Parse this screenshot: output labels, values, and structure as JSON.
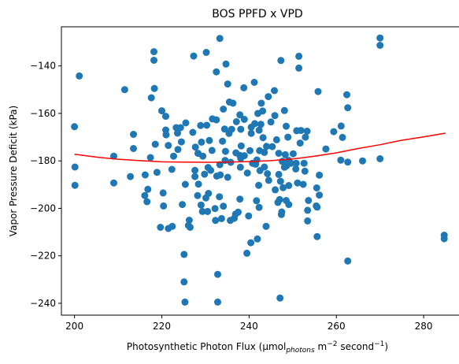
{
  "chart_data": {
    "type": "scatter",
    "title": "BOS PPFD x VPD",
    "xlabel": {
      "prefix": "Photosynthetic Photon Flux (µmol",
      "subscript": "photons",
      "middle": " m",
      "sup1": "−2",
      "suffix": " second",
      "sup2": "−1",
      "end": ")"
    },
    "ylabel": "Vapor Pressure Deficit (kPa)",
    "xlim": [
      197,
      289
    ],
    "ylim": [
      -245,
      -123.5
    ],
    "xticks": [
      200,
      220,
      240,
      260,
      280
    ],
    "yticks": [
      -240,
      -220,
      -200,
      -180,
      -160,
      -140
    ],
    "xtick_labels": [
      "200",
      "220",
      "240",
      "260",
      "280"
    ],
    "ytick_labels": [
      "−240",
      "−220",
      "−200",
      "−180",
      "−160",
      "−140"
    ],
    "grid": false,
    "colors": {
      "points": "#1f77b4",
      "trend": "#ff0000"
    },
    "points": [
      [
        200.0,
        -165.6
      ],
      [
        200.1,
        -182.6
      ],
      [
        200.1,
        -190.3
      ],
      [
        201.1,
        -144.2
      ],
      [
        209.0,
        -178.0
      ],
      [
        209.0,
        -189.3
      ],
      [
        211.5,
        -150.0
      ],
      [
        212.8,
        -186.6
      ],
      [
        213.5,
        -168.8
      ],
      [
        213.5,
        -174.8
      ],
      [
        216.1,
        -194.6
      ],
      [
        216.2,
        -185.9
      ],
      [
        216.6,
        -197.2
      ],
      [
        216.8,
        -192.0
      ],
      [
        217.4,
        -178.6
      ],
      [
        217.6,
        -153.4
      ],
      [
        218.2,
        -134.0
      ],
      [
        218.2,
        -137.6
      ],
      [
        218.3,
        -149.5
      ],
      [
        218.5,
        -173.0
      ],
      [
        218.9,
        -184.8
      ],
      [
        219.7,
        -208.0
      ],
      [
        220.0,
        -158.9
      ],
      [
        220.3,
        -193.5
      ],
      [
        220.4,
        -199.0
      ],
      [
        220.9,
        -161.2
      ],
      [
        220.9,
        -167.0
      ],
      [
        221.0,
        -169.0
      ],
      [
        221.5,
        -208.5
      ],
      [
        221.5,
        -173.5
      ],
      [
        222.3,
        -183.6
      ],
      [
        222.4,
        -207.6
      ],
      [
        222.7,
        -178.0
      ],
      [
        223.3,
        -166.0
      ],
      [
        223.6,
        -168.3
      ],
      [
        223.7,
        -175.2
      ],
      [
        224.3,
        -166.0
      ],
      [
        224.5,
        -172.0
      ],
      [
        224.7,
        -198.4
      ],
      [
        225.1,
        -219.4
      ],
      [
        225.1,
        -231.0
      ],
      [
        225.3,
        -239.5
      ],
      [
        225.4,
        -189.9
      ],
      [
        225.5,
        -164.0
      ],
      [
        226.1,
        -207.2
      ],
      [
        226.3,
        -205.0
      ],
      [
        226.5,
        -208.0
      ],
      [
        227.1,
        -168.0
      ],
      [
        227.3,
        -135.8
      ],
      [
        227.6,
        -184.0
      ],
      [
        227.6,
        -186.6
      ],
      [
        227.7,
        -174.2
      ],
      [
        228.2,
        -194.6
      ],
      [
        228.3,
        -176.8
      ],
      [
        228.4,
        -189.8
      ],
      [
        228.9,
        -165.1
      ],
      [
        229.0,
        -198.6
      ],
      [
        229.1,
        -172.1
      ],
      [
        229.3,
        -201.3
      ],
      [
        229.4,
        -178.0
      ],
      [
        229.8,
        -185.6
      ],
      [
        230.1,
        -195.6
      ],
      [
        230.2,
        -134.3
      ],
      [
        230.3,
        -165.0
      ],
      [
        230.5,
        -201.3
      ],
      [
        230.6,
        -182.8
      ],
      [
        230.7,
        -193.7
      ],
      [
        230.9,
        -171.4
      ],
      [
        231.2,
        -184.0
      ],
      [
        231.5,
        -175.6
      ],
      [
        231.6,
        -162.3
      ],
      [
        232.2,
        -200.1
      ],
      [
        232.3,
        -205.1
      ],
      [
        232.5,
        -142.5
      ],
      [
        232.5,
        -162.7
      ],
      [
        232.6,
        -186.4
      ],
      [
        232.8,
        -227.8
      ],
      [
        232.8,
        -239.5
      ],
      [
        233.2,
        -195.1
      ],
      [
        233.3,
        -128.4
      ],
      [
        233.3,
        -181.6
      ],
      [
        233.4,
        -185.9
      ],
      [
        233.7,
        -204.3
      ],
      [
        233.9,
        -171.7
      ],
      [
        234.1,
        -199.1
      ],
      [
        234.1,
        -158.2
      ],
      [
        234.4,
        -166.6
      ],
      [
        234.5,
        -179.8
      ],
      [
        234.6,
        -176.0
      ],
      [
        234.7,
        -139.2
      ],
      [
        235.1,
        -147.6
      ],
      [
        235.1,
        -186.9
      ],
      [
        235.4,
        -168.4
      ],
      [
        235.5,
        -155.2
      ],
      [
        235.7,
        -205.1
      ],
      [
        235.8,
        -180.6
      ],
      [
        236.0,
        -166.7
      ],
      [
        236.3,
        -155.7
      ],
      [
        236.6,
        -204.2
      ],
      [
        236.9,
        -202.4
      ],
      [
        237.0,
        -176.6
      ],
      [
        237.1,
        -163.5
      ],
      [
        237.5,
        -201.6
      ],
      [
        237.9,
        -160.6
      ],
      [
        237.9,
        -196.1
      ],
      [
        237.9,
        -177.7
      ],
      [
        238.0,
        -182.7
      ],
      [
        238.1,
        -166.7
      ],
      [
        238.1,
        -178.9
      ],
      [
        238.2,
        -173.7
      ],
      [
        238.8,
        -149.2
      ],
      [
        238.9,
        -177.8
      ],
      [
        238.9,
        -162.5
      ],
      [
        239.5,
        -218.9
      ],
      [
        239.6,
        -185.1
      ],
      [
        239.9,
        -203.2
      ],
      [
        240.2,
        -175.7
      ],
      [
        240.4,
        -214.5
      ],
      [
        240.5,
        -168.4
      ],
      [
        240.5,
        -165.8
      ],
      [
        240.8,
        -181.0
      ],
      [
        241.2,
        -146.9
      ],
      [
        241.3,
        -164.3
      ],
      [
        241.5,
        -181.4
      ],
      [
        241.7,
        -196.8
      ],
      [
        241.8,
        -179.6
      ],
      [
        241.9,
        -212.9
      ],
      [
        242.0,
        -160.0
      ],
      [
        242.2,
        -190.3
      ],
      [
        242.3,
        -199.6
      ],
      [
        242.3,
        -167.1
      ],
      [
        242.4,
        -175.7
      ],
      [
        242.5,
        -184.1
      ],
      [
        242.7,
        -164.6
      ],
      [
        242.8,
        -155.7
      ],
      [
        243.1,
        -159.0
      ],
      [
        243.2,
        -170.2
      ],
      [
        243.5,
        -176.4
      ],
      [
        243.5,
        -182.6
      ],
      [
        243.9,
        -207.6
      ],
      [
        244.0,
        -173.9
      ],
      [
        244.2,
        -185.4
      ],
      [
        244.4,
        -152.9
      ],
      [
        244.5,
        -188.2
      ],
      [
        245.0,
        -163.6
      ],
      [
        245.3,
        -174.0
      ],
      [
        245.8,
        -150.4
      ],
      [
        245.9,
        -160.9
      ],
      [
        246.0,
        -192.2
      ],
      [
        246.3,
        -171.1
      ],
      [
        246.6,
        -197.5
      ],
      [
        246.8,
        -176.8
      ],
      [
        246.8,
        -185.7
      ],
      [
        247.0,
        -196.3
      ],
      [
        247.1,
        -237.8
      ],
      [
        247.2,
        -188.6
      ],
      [
        247.3,
        -137.7
      ],
      [
        247.4,
        -202.6
      ],
      [
        247.5,
        -201.5
      ],
      [
        247.6,
        -180.2
      ],
      [
        247.8,
        -191.3
      ],
      [
        248.1,
        -182.7
      ],
      [
        248.1,
        -158.8
      ],
      [
        248.3,
        -177.4
      ],
      [
        248.5,
        -165.4
      ],
      [
        248.5,
        -196.7
      ],
      [
        248.6,
        -182.1
      ],
      [
        248.9,
        -170.0
      ],
      [
        249.1,
        -179.8
      ],
      [
        249.1,
        -190.4
      ],
      [
        249.1,
        -198.4
      ],
      [
        249.6,
        -181.0
      ],
      [
        250.1,
        -177.0
      ],
      [
        250.7,
        -183.4
      ],
      [
        250.8,
        -181.0
      ],
      [
        250.9,
        -167.3
      ],
      [
        251.1,
        -189.3
      ],
      [
        251.4,
        -135.9
      ],
      [
        251.4,
        -140.9
      ],
      [
        251.7,
        -172.5
      ],
      [
        251.9,
        -167.2
      ],
      [
        252.4,
        -189.9
      ],
      [
        252.6,
        -181.0
      ],
      [
        252.8,
        -184.3
      ],
      [
        252.9,
        -170.0
      ],
      [
        253.3,
        -167.5
      ],
      [
        253.4,
        -200.8
      ],
      [
        253.4,
        -205.3
      ],
      [
        253.6,
        -196.7
      ],
      [
        255.4,
        -199.0
      ],
      [
        255.5,
        -191.4
      ],
      [
        255.6,
        -199.5
      ],
      [
        255.6,
        -211.9
      ],
      [
        255.8,
        -150.8
      ],
      [
        256.1,
        -194.4
      ],
      [
        256.1,
        -186.0
      ],
      [
        257.6,
        -175.0
      ],
      [
        259.4,
        -167.7
      ],
      [
        261.0,
        -179.7
      ],
      [
        261.1,
        -165.3
      ],
      [
        261.4,
        -170.1
      ],
      [
        262.4,
        -152.1
      ],
      [
        262.6,
        -157.6
      ],
      [
        262.6,
        -180.5
      ],
      [
        262.6,
        -222.2
      ],
      [
        266.0,
        -180.0
      ],
      [
        270.0,
        -128.2
      ],
      [
        270.0,
        -131.3
      ],
      [
        270.0,
        -179.1
      ],
      [
        284.7,
        -211.3
      ],
      [
        284.7,
        -212.8
      ]
    ],
    "trend": [
      [
        200,
        -177.2
      ],
      [
        205,
        -178.4
      ],
      [
        210,
        -179.3
      ],
      [
        215,
        -179.9
      ],
      [
        220,
        -180.4
      ],
      [
        225,
        -180.5
      ],
      [
        230,
        -180.6
      ],
      [
        235,
        -180.5
      ],
      [
        240,
        -180.3
      ],
      [
        245,
        -179.9
      ],
      [
        250,
        -179.2
      ],
      [
        255,
        -178.0
      ],
      [
        260,
        -176.6
      ],
      [
        265,
        -174.8
      ],
      [
        270,
        -173.2
      ],
      [
        275,
        -171.3
      ],
      [
        280,
        -169.9
      ],
      [
        285,
        -168.3
      ]
    ]
  }
}
